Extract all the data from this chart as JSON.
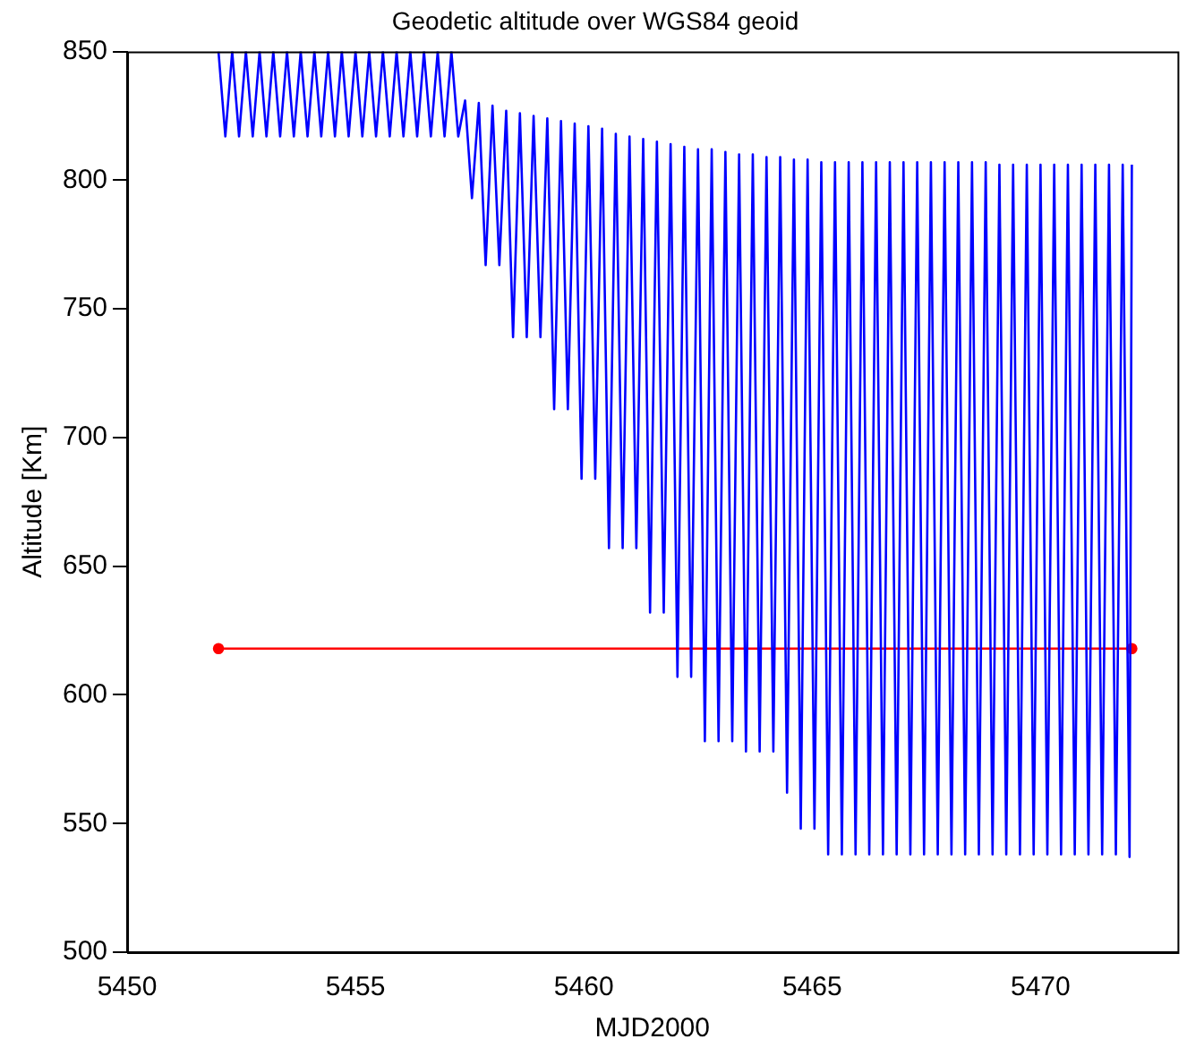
{
  "chart_data": {
    "type": "line",
    "title": "Geodetic altitude over WGS84 geoid",
    "xlabel": "MJD2000",
    "ylabel": "Altitude [Km]",
    "xlim": [
      5450,
      5473
    ],
    "xticks": [
      5450,
      5455,
      5460,
      5465,
      5470
    ],
    "ylim": [
      500,
      850
    ],
    "yticks": [
      500,
      550,
      600,
      650,
      700,
      750,
      800,
      850
    ],
    "series": [
      {
        "color": "#0000ff",
        "marker": "none",
        "x": [
          5452.0,
          5452.15,
          5452.3,
          5452.45,
          5452.6,
          5452.75,
          5452.9,
          5453.05,
          5453.2,
          5453.35,
          5453.5,
          5453.65,
          5453.8,
          5453.95,
          5454.1,
          5454.25,
          5454.4,
          5454.55,
          5454.7,
          5454.85,
          5455.0,
          5455.15,
          5455.3,
          5455.45,
          5455.6,
          5455.75,
          5455.9,
          5456.05,
          5456.2,
          5456.35,
          5456.5,
          5456.65,
          5456.8,
          5456.95,
          5457.1,
          5457.25,
          5457.4,
          5457.55,
          5457.7,
          5457.85,
          5458.0,
          5458.15,
          5458.3,
          5458.45,
          5458.6,
          5458.75,
          5458.9,
          5459.05,
          5459.2,
          5459.35,
          5459.5,
          5459.65,
          5459.8,
          5459.95,
          5460.1,
          5460.25,
          5460.4,
          5460.55,
          5460.7,
          5460.85,
          5461.0,
          5461.15,
          5461.3,
          5461.45,
          5461.6,
          5461.75,
          5461.9,
          5462.05,
          5462.2,
          5462.35,
          5462.5,
          5462.65,
          5462.8,
          5462.95,
          5463.1,
          5463.25,
          5463.4,
          5463.55,
          5463.7,
          5463.85,
          5464.0,
          5464.15,
          5464.3,
          5464.45,
          5464.6,
          5464.75,
          5464.9,
          5465.05,
          5465.2,
          5465.35,
          5465.5,
          5465.65,
          5465.8,
          5465.95,
          5466.1,
          5466.25,
          5466.4,
          5466.55,
          5466.7,
          5466.85,
          5467.0,
          5467.15,
          5467.3,
          5467.45,
          5467.6,
          5467.75,
          5467.9,
          5468.05,
          5468.2,
          5468.35,
          5468.5,
          5468.65,
          5468.8,
          5468.95,
          5469.1,
          5469.25,
          5469.4,
          5469.55,
          5469.7,
          5469.85,
          5470.0,
          5470.15,
          5470.3,
          5470.45,
          5470.6,
          5470.75,
          5470.9,
          5471.05,
          5471.2,
          5471.35,
          5471.5,
          5471.65,
          5471.8,
          5471.95,
          5472.0
        ],
        "values": [
          850,
          817,
          850,
          817,
          850,
          817,
          850,
          817,
          850,
          817,
          850,
          817,
          850,
          817,
          850,
          817,
          850,
          817,
          850,
          817,
          850,
          817,
          850,
          817,
          850,
          817,
          850,
          817,
          850,
          817,
          850,
          817,
          850,
          817,
          850,
          817,
          831,
          793,
          830,
          767,
          829,
          767,
          827,
          739,
          826,
          739,
          825,
          739,
          824,
          711,
          823,
          711,
          822,
          684,
          821,
          684,
          820,
          657,
          818,
          657,
          817,
          657,
          816,
          632,
          815,
          632,
          814,
          607,
          813,
          607,
          812,
          582,
          812,
          582,
          811,
          582,
          810,
          578,
          810,
          578,
          809,
          578,
          809,
          562,
          808,
          548,
          808,
          548,
          807,
          538,
          807,
          538,
          807,
          538,
          807,
          538,
          807,
          538,
          807,
          538,
          807,
          538,
          807,
          538,
          807,
          538,
          807,
          538,
          807,
          538,
          807,
          538,
          807,
          538,
          806,
          538,
          806,
          538,
          806,
          538,
          806,
          538,
          806,
          538,
          806,
          538,
          806,
          538,
          806,
          538,
          806,
          538,
          806,
          537,
          806
        ]
      },
      {
        "color": "#ff0000",
        "marker": "circle",
        "x": [
          5452,
          5472
        ],
        "values": [
          618,
          618
        ]
      }
    ]
  }
}
